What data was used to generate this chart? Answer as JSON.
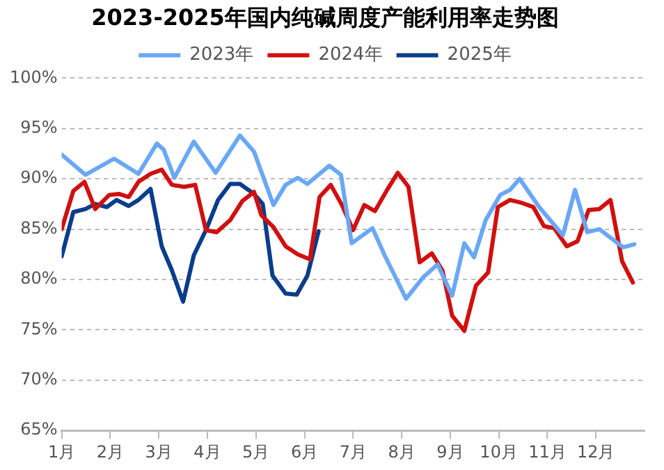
{
  "chart_data": {
    "type": "line",
    "title": "2023-2025年国内纯碱周度产能利用率走势图",
    "xlim": [
      1,
      13
    ],
    "xticks": [
      {
        "value": 1,
        "label": "1月"
      },
      {
        "value": 2,
        "label": "2月"
      },
      {
        "value": 3,
        "label": "3月"
      },
      {
        "value": 4,
        "label": "4月"
      },
      {
        "value": 5,
        "label": "5月"
      },
      {
        "value": 6,
        "label": "6月"
      },
      {
        "value": 7,
        "label": "7月"
      },
      {
        "value": 8,
        "label": "8月"
      },
      {
        "value": 9,
        "label": "9月"
      },
      {
        "value": 10,
        "label": "10月"
      },
      {
        "value": 11,
        "label": "11月"
      },
      {
        "value": 12,
        "label": "12月"
      }
    ],
    "ylim": [
      65,
      100
    ],
    "yticks": [
      {
        "value": 65,
        "label": "65%"
      },
      {
        "value": 70,
        "label": "70%"
      },
      {
        "value": 75,
        "label": "75%"
      },
      {
        "value": 80,
        "label": "80%"
      },
      {
        "value": 85,
        "label": "85%"
      },
      {
        "value": 90,
        "label": "90%"
      },
      {
        "value": 95,
        "label": "95%"
      },
      {
        "value": 100,
        "label": "100%"
      }
    ],
    "grid": "y",
    "legend": "top",
    "marker": "none",
    "line_style": "solid",
    "series": [
      {
        "name": "2023年",
        "color": "#6aa8f5",
        "x": [
          1.0,
          1.49,
          2.08,
          2.58,
          2.96,
          3.1,
          3.32,
          3.72,
          4.17,
          4.67,
          4.96,
          5.36,
          5.61,
          5.86,
          6.06,
          6.51,
          6.75,
          6.97,
          7.4,
          7.65,
          8.09,
          8.44,
          8.74,
          9.04,
          9.29,
          9.49,
          9.73,
          10.03,
          10.23,
          10.43,
          10.83,
          11.32,
          11.57,
          11.82,
          12.07,
          12.56,
          12.79
        ],
        "values": [
          92.4,
          90.4,
          92.0,
          90.5,
          93.5,
          92.9,
          90.1,
          93.7,
          90.6,
          94.3,
          92.7,
          87.4,
          89.4,
          90.1,
          89.5,
          91.3,
          90.4,
          83.6,
          85.1,
          82.4,
          78.1,
          80.2,
          81.5,
          78.4,
          83.6,
          82.2,
          85.9,
          88.4,
          88.9,
          90.0,
          87.2,
          84.4,
          88.9,
          84.7,
          85.0,
          83.2,
          83.5
        ]
      },
      {
        "name": "2024年",
        "color": "#d0100f",
        "x": [
          1.0,
          1.24,
          1.47,
          1.69,
          1.98,
          2.18,
          2.38,
          2.58,
          2.83,
          3.06,
          3.27,
          3.52,
          3.75,
          3.97,
          4.19,
          4.47,
          4.72,
          4.96,
          5.11,
          5.36,
          5.61,
          5.86,
          6.11,
          6.31,
          6.54,
          6.77,
          7.0,
          7.23,
          7.45,
          7.7,
          7.92,
          8.14,
          8.37,
          8.62,
          8.84,
          9.04,
          9.29,
          9.53,
          9.78,
          9.98,
          10.23,
          10.48,
          10.71,
          10.93,
          11.14,
          11.4,
          11.62,
          11.85,
          12.07,
          12.3,
          12.54,
          12.76
        ],
        "values": [
          85.0,
          88.8,
          89.7,
          87.0,
          88.4,
          88.5,
          88.2,
          89.7,
          90.5,
          90.9,
          89.4,
          89.2,
          89.4,
          84.9,
          84.7,
          85.9,
          87.8,
          88.7,
          86.4,
          85.2,
          83.3,
          82.5,
          82.0,
          88.2,
          89.4,
          87.4,
          84.9,
          87.4,
          86.8,
          88.9,
          90.6,
          89.2,
          81.7,
          82.6,
          80.9,
          76.4,
          74.9,
          79.4,
          80.7,
          87.2,
          87.9,
          87.6,
          87.2,
          85.3,
          85.1,
          83.3,
          83.8,
          86.9,
          87.0,
          87.9,
          81.8,
          79.7
        ]
      },
      {
        "name": "2025年",
        "color": "#0a3d8a",
        "x": [
          1.0,
          1.24,
          1.49,
          1.69,
          1.93,
          2.13,
          2.38,
          2.58,
          2.83,
          3.06,
          3.27,
          3.5,
          3.72,
          3.97,
          4.22,
          4.47,
          4.67,
          4.96,
          5.14,
          5.34,
          5.61,
          5.84,
          6.06,
          6.29
        ],
        "values": [
          82.3,
          86.7,
          87.0,
          87.5,
          87.2,
          87.9,
          87.3,
          87.9,
          89.0,
          83.3,
          80.9,
          77.8,
          82.4,
          84.9,
          87.9,
          89.5,
          89.5,
          88.5,
          87.5,
          80.4,
          78.6,
          78.5,
          80.4,
          84.8
        ]
      }
    ]
  }
}
